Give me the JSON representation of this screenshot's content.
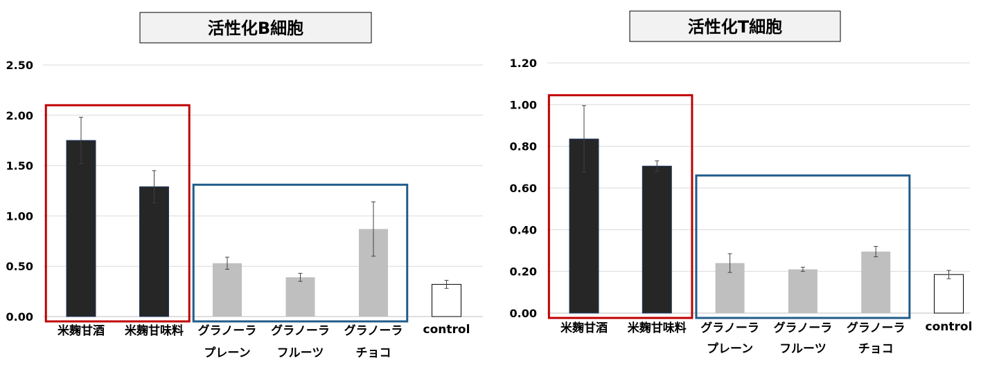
{
  "colors": {
    "dark_bar": "#262626",
    "dark_bar_edge": "#1f3864",
    "gray_bar": "#bfbfbf",
    "white_bar": "#ffffff",
    "white_bar_edge": "#000000",
    "red_group_box": "#c00000",
    "blue_group_box": "#1f5c8b",
    "title_box_fill": "#f2f2f2",
    "grid": "#d9d9d9",
    "axis": "#bfbfbf",
    "error_bar": "#404040",
    "text": "#000000"
  },
  "chart_data": [
    {
      "type": "bar",
      "title": "活性化B細胞",
      "xlabel": "",
      "ylabel": "",
      "ylim": [
        0,
        2.5
      ],
      "yticks": [
        "0.00",
        "0.50",
        "1.00",
        "1.50",
        "2.00",
        "2.50"
      ],
      "ytick_values": [
        0,
        0.5,
        1.0,
        1.5,
        2.0,
        2.5
      ],
      "grid": true,
      "legend": "none",
      "categories": [
        [
          "米麹甘酒"
        ],
        [
          "米麹甘味料"
        ],
        [
          "グラノーラ",
          "プレーン"
        ],
        [
          "グラノーラ",
          "フルーツ"
        ],
        [
          "グラノーラ",
          "チョコ"
        ],
        [
          "control"
        ]
      ],
      "values": [
        1.75,
        1.29,
        0.53,
        0.39,
        0.87,
        0.32
      ],
      "errors": [
        0.23,
        0.16,
        0.06,
        0.04,
        0.27,
        0.04
      ],
      "bar_styles": [
        "dark",
        "dark",
        "gray",
        "gray",
        "gray",
        "white"
      ],
      "groups": [
        {
          "style": "red",
          "from_index": 0,
          "to_index": 1,
          "top_value": 2.1
        },
        {
          "style": "blue",
          "from_index": 2,
          "to_index": 4,
          "top_value": 1.31
        }
      ]
    },
    {
      "type": "bar",
      "title": "活性化T細胞",
      "xlabel": "",
      "ylabel": "",
      "ylim": [
        0,
        1.2
      ],
      "yticks": [
        "0.00",
        "0.20",
        "0.40",
        "0.60",
        "0.80",
        "1.00",
        "1.20"
      ],
      "ytick_values": [
        0,
        0.2,
        0.4,
        0.6,
        0.8,
        1.0,
        1.2
      ],
      "grid": true,
      "legend": "none",
      "categories": [
        [
          "米麹甘酒"
        ],
        [
          "米麹甘味料"
        ],
        [
          "グラノーラ",
          "プレーン"
        ],
        [
          "グラノーラ",
          "フルーツ"
        ],
        [
          "グラノーラ",
          "チョコ"
        ],
        [
          "control"
        ]
      ],
      "values": [
        0.835,
        0.705,
        0.24,
        0.21,
        0.295,
        0.185
      ],
      "errors": [
        0.16,
        0.025,
        0.045,
        0.01,
        0.025,
        0.02
      ],
      "bar_styles": [
        "dark",
        "dark",
        "gray",
        "gray",
        "gray",
        "white"
      ],
      "groups": [
        {
          "style": "red",
          "from_index": 0,
          "to_index": 1,
          "top_value": 1.045
        },
        {
          "style": "blue",
          "from_index": 2,
          "to_index": 4,
          "top_value": 0.66
        }
      ]
    }
  ]
}
